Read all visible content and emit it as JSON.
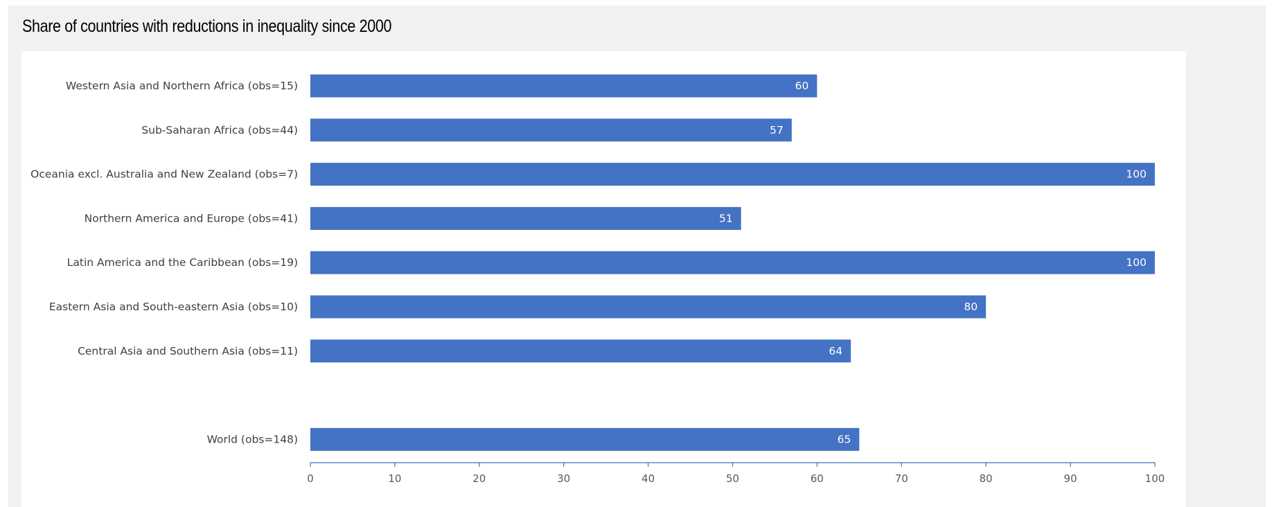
{
  "title": "Share of countries with reductions in inequality since 2000",
  "colors": {
    "bar": "#4472c4",
    "axis": "#4472c4",
    "panel": "#f1f1f1",
    "plot": "#ffffff"
  },
  "chart_data": {
    "type": "bar",
    "orientation": "horizontal",
    "title": "Share of countries with reductions in inequality since 2000",
    "categories": [
      "Western Asia and Northern Africa (obs=15)",
      "Sub-Saharan Africa (obs=44)",
      "Oceania excl. Australia and New Zealand (obs=7)",
      "Northern America and Europe (obs=41)",
      "Latin America and the Caribbean (obs=19)",
      "Eastern Asia and South-eastern Asia (obs=10)",
      "Central Asia and Southern Asia (obs=11)",
      "",
      "World (obs=148)"
    ],
    "values": [
      60,
      57,
      100,
      51,
      100,
      80,
      64,
      null,
      65
    ],
    "data_labels": [
      "60",
      "57",
      "100",
      "51",
      "100",
      "80",
      "64",
      "",
      "65"
    ],
    "xlim": [
      0,
      100
    ],
    "xticks": [
      0,
      10,
      20,
      30,
      40,
      50,
      60,
      70,
      80,
      90,
      100
    ],
    "xtick_labels": [
      "0",
      "10",
      "20",
      "30",
      "40",
      "50",
      "60",
      "70",
      "80",
      "90",
      "100"
    ],
    "xlabel": "",
    "ylabel": "",
    "grid": false,
    "legend": "none"
  }
}
